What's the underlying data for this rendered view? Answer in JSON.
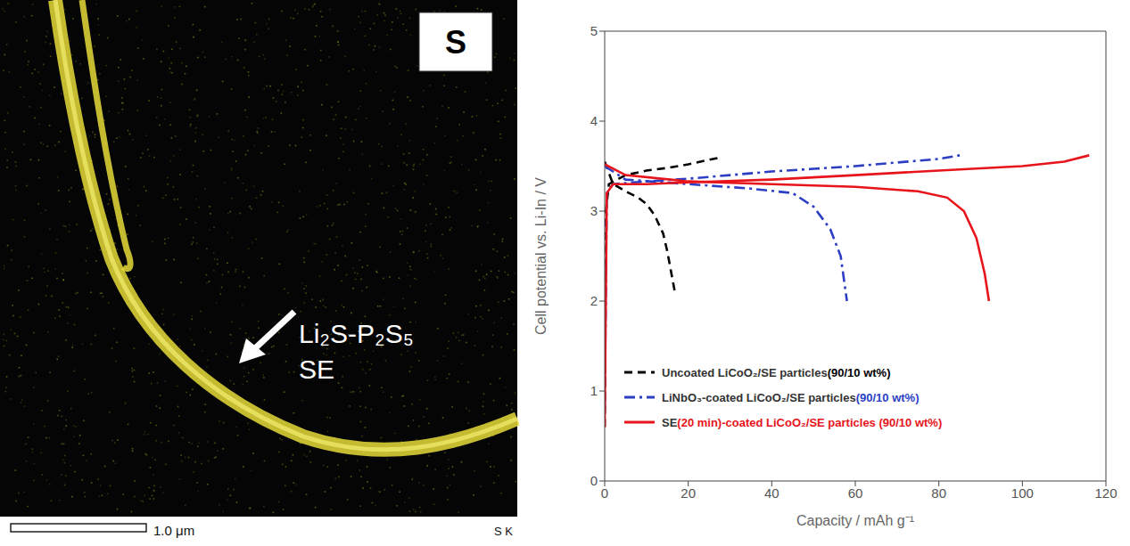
{
  "image_panel": {
    "element_label": "S",
    "annotation": "Li₂S-P₂S₅ SE",
    "scale_bar": "1.0 μm",
    "corner_text": "S K"
  },
  "chart_data": {
    "type": "line",
    "x_label": "Capacity / mAh g⁻¹",
    "y_label": "Cell potential vs. Li-In / V",
    "xlim": [
      0,
      120
    ],
    "xticks": [
      0,
      20,
      40,
      60,
      80,
      100,
      120
    ],
    "ylim": [
      0,
      5
    ],
    "yticks": [
      0,
      1,
      2,
      3,
      4,
      5
    ],
    "grid": false,
    "legend": "lower left",
    "series": [
      {
        "name": "Uncoated LiCoO₂/SE particles (90/10 wt%)",
        "color": "#000000",
        "line_style": "dashed",
        "charge": {
          "x": [
            0,
            0.3,
            1,
            5,
            10,
            15,
            20,
            25,
            28
          ],
          "values": [
            0.6,
            3.0,
            3.3,
            3.4,
            3.45,
            3.48,
            3.52,
            3.57,
            3.6
          ]
        },
        "discharge": {
          "x": [
            0,
            2,
            5,
            8,
            10,
            12,
            14,
            15,
            16,
            16.8
          ],
          "values": [
            3.55,
            3.3,
            3.22,
            3.15,
            3.08,
            2.95,
            2.75,
            2.55,
            2.3,
            2.1
          ]
        }
      },
      {
        "name": "LiNbO₃-coated LiCoO₂/SE particles (90/10 wt%)",
        "color": "#2c3fc4",
        "line_style": "dashdot",
        "charge": {
          "x": [
            0,
            0.5,
            2,
            10,
            20,
            30,
            40,
            50,
            60,
            70,
            80,
            85
          ],
          "values": [
            0.8,
            3.2,
            3.3,
            3.33,
            3.36,
            3.4,
            3.44,
            3.47,
            3.5,
            3.54,
            3.58,
            3.62
          ]
        },
        "discharge": {
          "x": [
            0,
            5,
            20,
            35,
            45,
            50,
            54,
            56.5,
            58
          ],
          "values": [
            3.5,
            3.35,
            3.3,
            3.25,
            3.2,
            3.05,
            2.8,
            2.5,
            2.0
          ]
        }
      },
      {
        "name": "SE (20 min)-coated LiCoO₂/SE particles (90/10 wt%)",
        "color": "#e8141b",
        "line_style": "solid",
        "charge": {
          "x": [
            0,
            0.5,
            2,
            10,
            20,
            40,
            60,
            80,
            100,
            110,
            116
          ],
          "values": [
            0.6,
            3.2,
            3.3,
            3.3,
            3.32,
            3.35,
            3.4,
            3.45,
            3.5,
            3.55,
            3.62
          ]
        },
        "discharge": {
          "x": [
            0,
            5,
            20,
            40,
            60,
            75,
            82,
            86,
            89,
            91,
            92
          ],
          "values": [
            3.52,
            3.4,
            3.33,
            3.3,
            3.27,
            3.22,
            3.15,
            3.0,
            2.7,
            2.3,
            2.0
          ]
        }
      }
    ]
  }
}
